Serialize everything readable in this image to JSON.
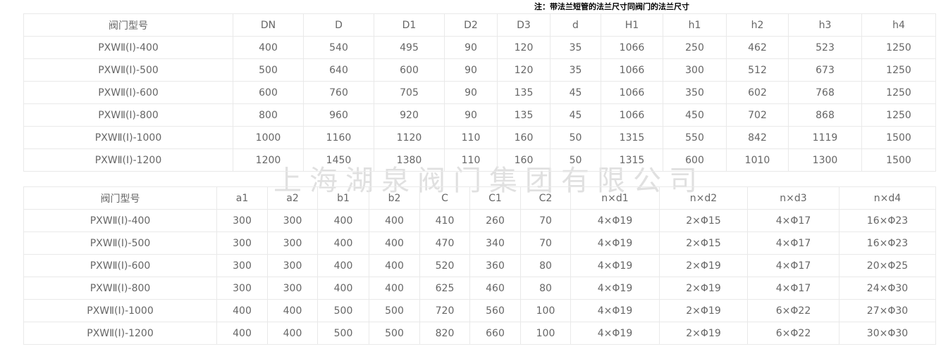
{
  "note": "注：带法兰短管的法兰尺寸同阀门的法兰尺寸",
  "watermark": "上海湖泉阀门集团有限公司",
  "colors": {
    "border": "#e9e9e9",
    "text": "#666666",
    "note_text": "#000000",
    "watermark": "#c8c8c8"
  },
  "table1": {
    "headers": [
      "阀门型号",
      "DN",
      "D",
      "D1",
      "D2",
      "D3",
      "d",
      "H1",
      "h1",
      "h2",
      "h3",
      "h4"
    ],
    "rows": [
      [
        "PXWⅡ(Ⅰ)-400",
        "400",
        "540",
        "495",
        "90",
        "120",
        "35",
        "1066",
        "250",
        "462",
        "523",
        "1250"
      ],
      [
        "PXWⅡ(Ⅰ)-500",
        "500",
        "640",
        "600",
        "90",
        "120",
        "35",
        "1066",
        "300",
        "512",
        "673",
        "1250"
      ],
      [
        "PXWⅡ(Ⅰ)-600",
        "600",
        "760",
        "705",
        "90",
        "135",
        "45",
        "1066",
        "350",
        "602",
        "768",
        "1250"
      ],
      [
        "PXWⅡ(Ⅰ)-800",
        "800",
        "960",
        "920",
        "90",
        "135",
        "45",
        "1066",
        "450",
        "702",
        "868",
        "1250"
      ],
      [
        "PXWⅡ(Ⅰ)-1000",
        "1000",
        "1160",
        "1120",
        "110",
        "160",
        "50",
        "1315",
        "550",
        "842",
        "1119",
        "1500"
      ],
      [
        "PXWⅡ(Ⅰ)-1200",
        "1200",
        "1450",
        "1380",
        "110",
        "160",
        "50",
        "1315",
        "600",
        "1010",
        "1300",
        "1500"
      ]
    ]
  },
  "table2": {
    "headers": [
      "阀门型号",
      "a1",
      "a2",
      "b1",
      "b2",
      "C",
      "C1",
      "C2",
      "n×d1",
      "n×d2",
      "n×d3",
      "n×d4"
    ],
    "rows": [
      [
        "PXWⅡ(Ⅰ)-400",
        "300",
        "300",
        "400",
        "400",
        "410",
        "260",
        "70",
        "4×Φ19",
        "2×Φ15",
        "4×Φ17",
        "16×Φ23"
      ],
      [
        "PXWⅡ(Ⅰ)-500",
        "300",
        "300",
        "400",
        "400",
        "470",
        "340",
        "70",
        "4×Φ19",
        "2×Φ15",
        "4×Φ17",
        "16×Φ23"
      ],
      [
        "PXWⅡ(Ⅰ)-600",
        "300",
        "300",
        "400",
        "400",
        "520",
        "360",
        "80",
        "4×Φ19",
        "2×Φ19",
        "4×Φ17",
        "20×Φ25"
      ],
      [
        "PXWⅡ(Ⅰ)-800",
        "300",
        "300",
        "400",
        "400",
        "625",
        "460",
        "80",
        "4×Φ19",
        "2×Φ19",
        "4×Φ17",
        "24×Φ30"
      ],
      [
        "PXWⅡ(Ⅰ)-1000",
        "400",
        "400",
        "500",
        "500",
        "720",
        "560",
        "100",
        "4×Φ19",
        "2×Φ19",
        "6×Φ22",
        "27×Φ30"
      ],
      [
        "PXWⅡ(Ⅰ)-1200",
        "400",
        "400",
        "500",
        "500",
        "820",
        "660",
        "100",
        "4×Φ19",
        "2×Φ19",
        "6×Φ22",
        "30×Φ30"
      ]
    ]
  }
}
